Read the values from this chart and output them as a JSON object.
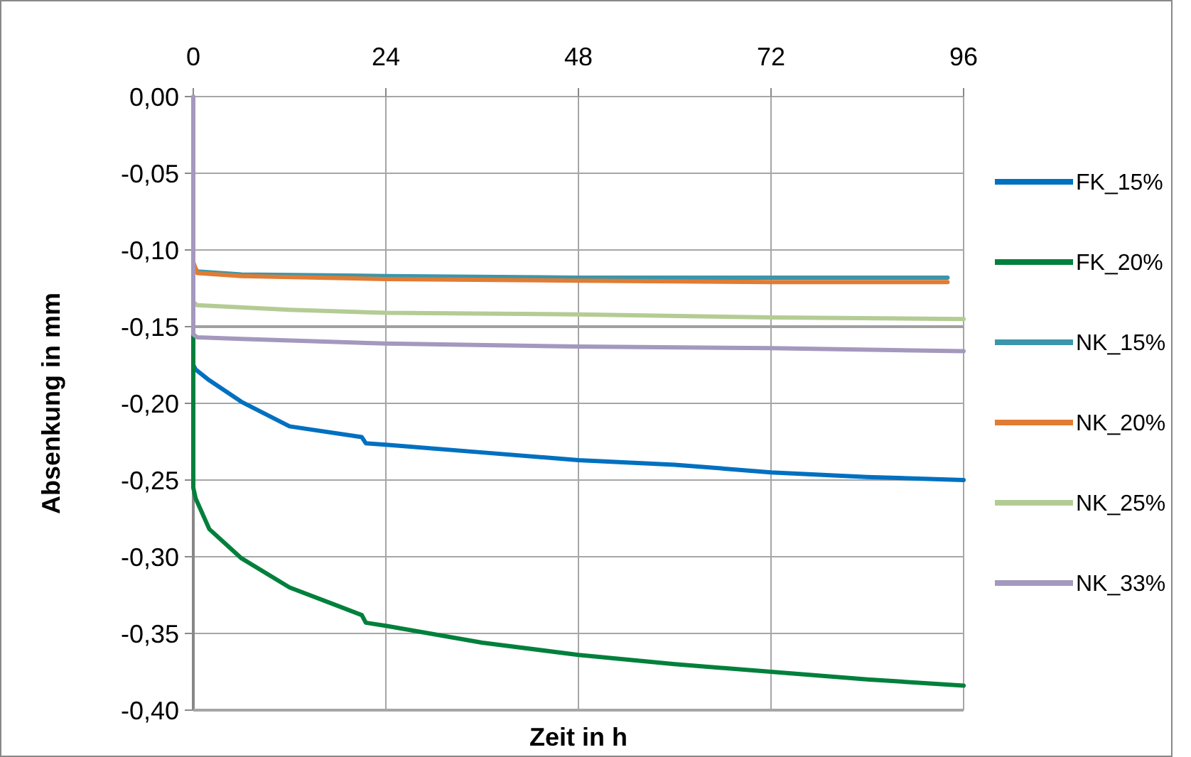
{
  "chart_data": {
    "type": "line",
    "xlabel": "Zeit in h",
    "ylabel": "Absenkung in mm",
    "xlim": [
      0,
      96
    ],
    "xticks": [
      0,
      24,
      48,
      72,
      96
    ],
    "ylim": [
      -0.4,
      0
    ],
    "yticks": [
      {
        "value": 0,
        "label": "0,00"
      },
      {
        "value": -0.05,
        "label": "-0,05"
      },
      {
        "value": -0.1,
        "label": "-0,10"
      },
      {
        "value": -0.15,
        "label": "-0,15"
      },
      {
        "value": -0.2,
        "label": "-0,20"
      },
      {
        "value": -0.25,
        "label": "-0,25"
      },
      {
        "value": -0.3,
        "label": "-0,30"
      },
      {
        "value": -0.35,
        "label": "-0,35"
      },
      {
        "value": -0.4,
        "label": "-0,40"
      }
    ],
    "grid": true,
    "legend": "right",
    "marker": "none",
    "line_style": "solid",
    "ref_lines": [
      {
        "axis": "y",
        "value": -0.15,
        "label": null,
        "color": "#a0a0a0"
      }
    ],
    "series": [
      {
        "name": "FK_15%",
        "color": "#0070c0",
        "x": [
          0,
          0.3,
          2,
          6,
          12,
          21,
          21.5,
          24,
          36,
          48,
          60,
          72,
          84,
          96
        ],
        "values": [
          -0.175,
          -0.178,
          -0.185,
          -0.199,
          -0.215,
          -0.222,
          -0.226,
          -0.227,
          -0.232,
          -0.237,
          -0.24,
          -0.245,
          -0.248,
          -0.25
        ]
      },
      {
        "name": "FK_20%",
        "color": "#00803c",
        "x": [
          0,
          0,
          0.3,
          2,
          6,
          12,
          18,
          21,
          21.5,
          24,
          36,
          48,
          60,
          72,
          84,
          96
        ],
        "values": [
          -0.155,
          -0.255,
          -0.262,
          -0.282,
          -0.301,
          -0.32,
          -0.332,
          -0.338,
          -0.343,
          -0.345,
          -0.356,
          -0.364,
          -0.37,
          -0.375,
          -0.38,
          -0.384
        ]
      },
      {
        "name": "NK_15%",
        "color": "#3c96aa",
        "x": [
          0,
          0.5,
          6,
          24,
          48,
          72,
          94
        ],
        "values": [
          -0.11,
          -0.114,
          -0.116,
          -0.117,
          -0.118,
          -0.118,
          -0.118
        ]
      },
      {
        "name": "NK_20%",
        "color": "#e07c34",
        "x": [
          0,
          0.5,
          6,
          24,
          48,
          72,
          94
        ],
        "values": [
          -0.108,
          -0.115,
          -0.117,
          -0.119,
          -0.12,
          -0.121,
          -0.121
        ]
      },
      {
        "name": "NK_25%",
        "color": "#b4cc94",
        "x": [
          0,
          0.5,
          12,
          24,
          48,
          72,
          96
        ],
        "values": [
          -0.134,
          -0.136,
          -0.139,
          -0.141,
          -0.142,
          -0.144,
          -0.145
        ]
      },
      {
        "name": "NK_33%",
        "color": "#a498be",
        "x": [
          0,
          0,
          0.5,
          6,
          24,
          48,
          72,
          96
        ],
        "values": [
          0,
          -0.155,
          -0.157,
          -0.158,
          -0.161,
          -0.163,
          -0.164,
          -0.166
        ]
      }
    ]
  }
}
